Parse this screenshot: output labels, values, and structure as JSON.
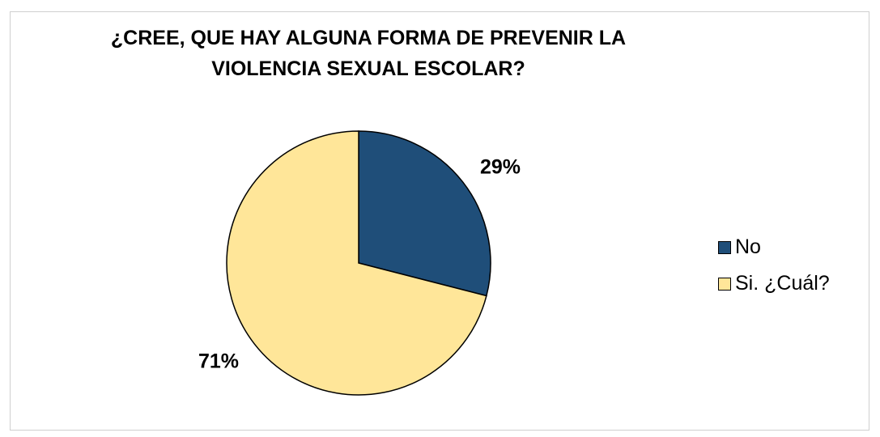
{
  "chart_data": {
    "type": "pie",
    "title_lines": [
      "¿CREE, QUE HAY ALGUNA FORMA DE PREVENIR LA",
      "VIOLENCIA SEXUAL ESCOLAR?"
    ],
    "categories": [
      "No",
      "Si. ¿Cuál?"
    ],
    "values": [
      29,
      71
    ],
    "data_labels": [
      "29%",
      "71%"
    ],
    "colors": [
      "#1F4E79",
      "#FFE699"
    ],
    "legend_position": "right"
  }
}
